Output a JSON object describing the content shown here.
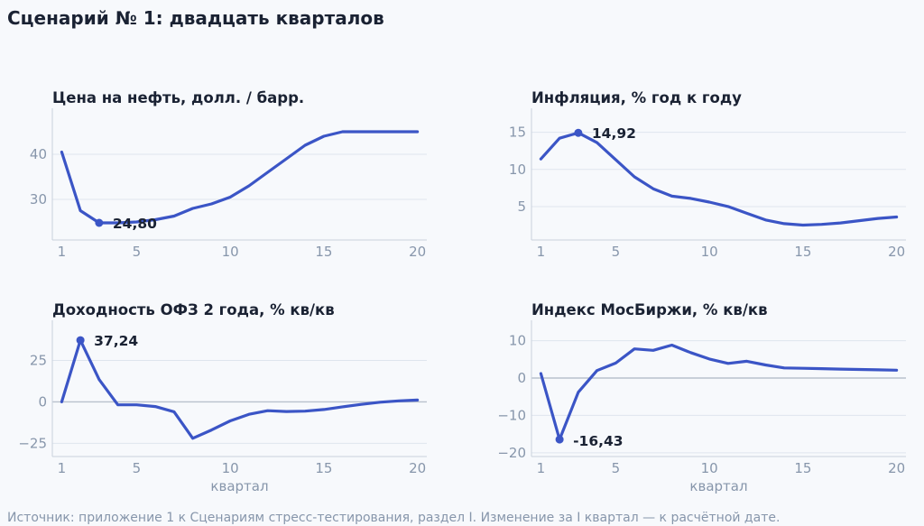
{
  "page": {
    "title": "Сценарий № 1: двадцать кварталов",
    "source": "Источник: приложение 1 к Сценариям стресс-тестирования, раздел I. Изменение за I квартал — к расчётной дате."
  },
  "colors": {
    "line": "#3b55c6",
    "grid": "#dfe5ee",
    "zero": "#b9c1cc",
    "axis": "#c9d1dc"
  },
  "chart_data": [
    {
      "type": "line",
      "title": "Цена на нефть, долл. / барр.",
      "xlabel": "",
      "x": [
        1,
        2,
        3,
        4,
        5,
        6,
        7,
        8,
        9,
        10,
        11,
        12,
        13,
        14,
        15,
        16,
        17,
        18,
        19,
        20
      ],
      "values": [
        40.5,
        27.5,
        24.8,
        24.8,
        25.0,
        25.5,
        26.3,
        28.0,
        29.0,
        30.5,
        33.0,
        36.0,
        39.0,
        42.0,
        44.0,
        45.0,
        45.0,
        45.0,
        45.0,
        45.0
      ],
      "xticks": [
        1,
        5,
        10,
        15,
        20
      ],
      "yticks": [
        30,
        40
      ],
      "ylim": [
        21,
        49
      ],
      "annotation": {
        "x": 3,
        "y": 24.8,
        "label": "24,80"
      }
    },
    {
      "type": "line",
      "title": "Инфляция, % год к году",
      "xlabel": "",
      "x": [
        1,
        2,
        3,
        4,
        5,
        6,
        7,
        8,
        9,
        10,
        11,
        12,
        13,
        14,
        15,
        16,
        17,
        18,
        19,
        20
      ],
      "values": [
        11.4,
        14.2,
        14.92,
        13.6,
        11.3,
        9.0,
        7.4,
        6.4,
        6.1,
        5.6,
        5.0,
        4.1,
        3.2,
        2.7,
        2.5,
        2.6,
        2.8,
        3.1,
        3.4,
        3.6
      ],
      "xticks": [
        1,
        5,
        10,
        15,
        20
      ],
      "yticks": [
        5,
        10,
        15
      ],
      "ylim": [
        0.5,
        17.5
      ],
      "annotation": {
        "x": 3,
        "y": 14.92,
        "label": "14,92"
      }
    },
    {
      "type": "line",
      "title": "Доходность ОФЗ 2 года, % кв/кв",
      "xlabel": "квартал",
      "x": [
        1,
        2,
        3,
        4,
        5,
        6,
        7,
        8,
        9,
        10,
        11,
        12,
        13,
        14,
        15,
        16,
        17,
        18,
        19,
        20
      ],
      "values": [
        0,
        37.24,
        13.5,
        -1.8,
        -1.8,
        -2.8,
        -6.0,
        -22.0,
        -17.0,
        -11.5,
        -7.5,
        -5.3,
        -5.8,
        -5.6,
        -4.6,
        -3.0,
        -1.5,
        -0.2,
        0.6,
        1.1
      ],
      "xticks": [
        1,
        5,
        10,
        15,
        20
      ],
      "yticks": [
        -25,
        0,
        25
      ],
      "ylim": [
        -33,
        46
      ],
      "annotation": {
        "x": 2,
        "y": 37.24,
        "label": "37,24"
      }
    },
    {
      "type": "line",
      "title": "Индекс МосБиржи, % кв/кв",
      "xlabel": "квартал",
      "x": [
        1,
        2,
        3,
        4,
        5,
        6,
        7,
        8,
        9,
        10,
        11,
        12,
        13,
        14,
        15,
        16,
        17,
        18,
        19,
        20
      ],
      "values": [
        1.2,
        -16.43,
        -3.8,
        2.0,
        4.0,
        7.8,
        7.4,
        8.8,
        6.8,
        5.1,
        3.9,
        4.5,
        3.5,
        2.7,
        2.6,
        2.5,
        2.4,
        2.3,
        2.2,
        2.1
      ],
      "xticks": [
        1,
        5,
        10,
        15,
        20
      ],
      "yticks": [
        -20,
        -10,
        0,
        10
      ],
      "ylim": [
        -21,
        14
      ],
      "annotation": {
        "x": 2,
        "y": -16.43,
        "label": "-16,43"
      }
    }
  ]
}
